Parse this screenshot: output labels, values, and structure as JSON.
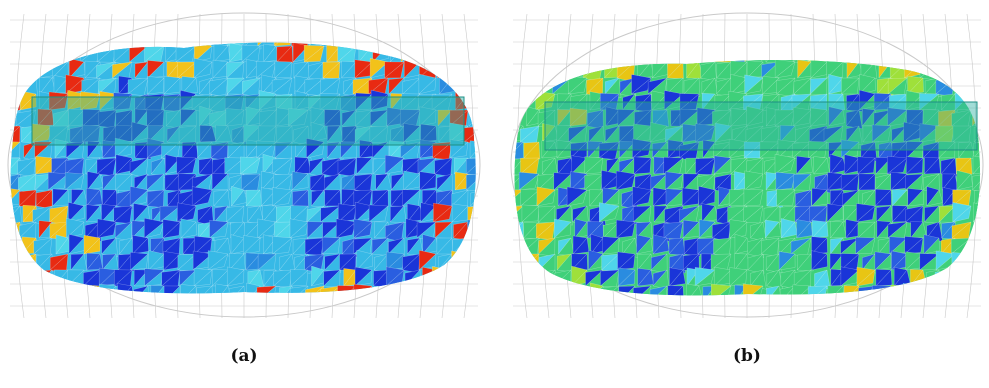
{
  "figure": {
    "panels": [
      {
        "id": "a",
        "caption": "(a)",
        "base_color": "#37b9e6",
        "hot_color": "#e82a12",
        "warm_color": "#f2c21a",
        "cold_color": "#1a35d8"
      },
      {
        "id": "b",
        "caption": "(b)",
        "base_color": "#3fd07a",
        "hot_color": "#e8c514",
        "warm_color": "#9fe03a",
        "cold_color": "#1a35d8"
      }
    ],
    "wireframe_color": "#c9c9c9",
    "plate_color": "#2fb4a6"
  }
}
